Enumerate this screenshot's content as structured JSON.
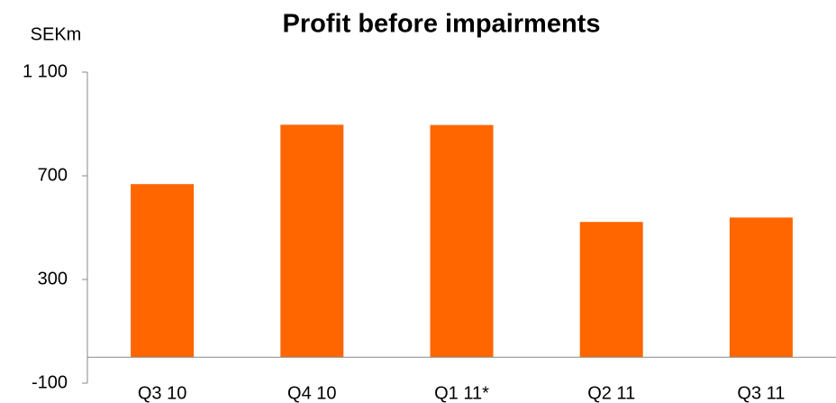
{
  "chart_data": {
    "type": "bar",
    "title": "Profit before impairments",
    "y_label": "SEKm",
    "categories": [
      "Q3 10",
      "Q4 10",
      "Q1 11*",
      "Q2 11",
      "Q3 11"
    ],
    "values": [
      668,
      897,
      896,
      522,
      539
    ],
    "color": "#ff6600",
    "ylim": [
      -100,
      1100
    ],
    "yticks": [
      -100,
      300,
      700,
      {
        "value": 1100,
        "label": "1 100"
      }
    ],
    "grid": false
  }
}
